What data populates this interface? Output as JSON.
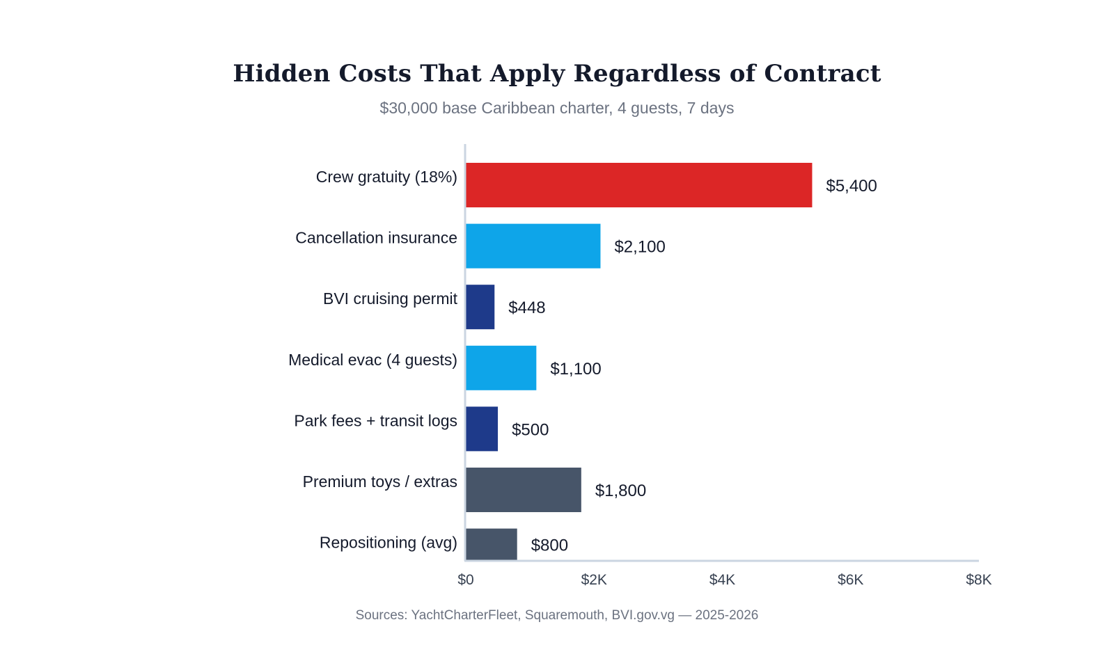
{
  "chart_data": {
    "type": "bar",
    "orientation": "horizontal",
    "title": "Hidden Costs That Apply Regardless of Contract",
    "subtitle": "$30,000 base Caribbean charter, 4 guests, 7 days",
    "source": "Sources: YachtCharterFleet, Squaremouth, BVI.gov.vg — 2025-2026",
    "categories": [
      "Crew gratuity (18%)",
      "Cancellation insurance",
      "BVI cruising permit",
      "Medical evac (4 guests)",
      "Park fees + transit logs",
      "Premium toys / extras",
      "Repositioning (avg)"
    ],
    "values": [
      5400,
      2100,
      448,
      1100,
      500,
      1800,
      800
    ],
    "value_labels": [
      "$5,400",
      "$2,100",
      "$448",
      "$1,100",
      "$500",
      "$1,800",
      "$800"
    ],
    "colors": [
      "#dc2626",
      "#0ea5e9",
      "#1e3a8a",
      "#0ea5e9",
      "#1e3a8a",
      "#475569",
      "#475569"
    ],
    "xlim": [
      0,
      8000
    ],
    "x_ticks": [
      0,
      2000,
      4000,
      6000,
      8000
    ],
    "x_tick_labels": [
      "$0",
      "$2K",
      "$4K",
      "$6K",
      "$8K"
    ],
    "grid": false,
    "legend": "none"
  }
}
